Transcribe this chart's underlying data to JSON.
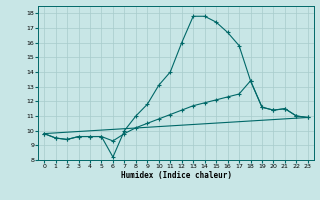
{
  "xlabel": "Humidex (Indice chaleur)",
  "xlim": [
    -0.5,
    23.5
  ],
  "ylim": [
    8,
    18.5
  ],
  "yticks": [
    8,
    9,
    10,
    11,
    12,
    13,
    14,
    15,
    16,
    17,
    18
  ],
  "xticks": [
    0,
    1,
    2,
    3,
    4,
    5,
    6,
    7,
    8,
    9,
    10,
    11,
    12,
    13,
    14,
    15,
    16,
    17,
    18,
    19,
    20,
    21,
    22,
    23
  ],
  "background_color": "#c8e6e6",
  "line_color": "#006868",
  "grid_color": "#a8cccc",
  "line1_x": [
    0,
    1,
    2,
    3,
    4,
    5,
    6,
    7,
    8,
    9,
    10,
    11,
    12,
    13,
    14,
    15,
    16,
    17,
    18,
    19,
    20,
    21,
    22,
    23
  ],
  "line1_y": [
    9.8,
    9.5,
    9.4,
    9.6,
    9.6,
    9.6,
    8.2,
    10.0,
    11.0,
    11.8,
    13.1,
    14.0,
    16.0,
    17.8,
    17.8,
    17.4,
    16.7,
    15.8,
    13.4,
    11.6,
    11.4,
    11.5,
    11.0,
    10.9
  ],
  "line2_x": [
    0,
    1,
    2,
    3,
    4,
    5,
    6,
    7,
    8,
    9,
    10,
    11,
    12,
    13,
    14,
    15,
    16,
    17,
    18,
    19,
    20,
    21,
    22,
    23
  ],
  "line2_y": [
    9.8,
    9.5,
    9.4,
    9.6,
    9.6,
    9.6,
    9.3,
    9.8,
    10.2,
    10.5,
    10.8,
    11.1,
    11.4,
    11.7,
    11.9,
    12.1,
    12.3,
    12.5,
    13.4,
    11.6,
    11.4,
    11.5,
    11.0,
    10.9
  ],
  "line3_x": [
    0,
    23
  ],
  "line3_y": [
    9.8,
    10.9
  ]
}
